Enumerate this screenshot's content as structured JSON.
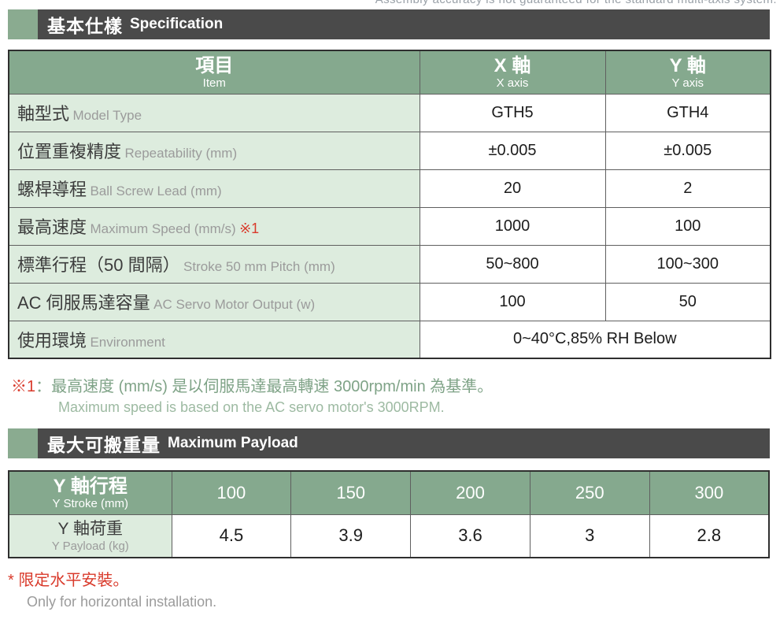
{
  "page": {
    "top_note": "Assembly accuracy is not guaranteed for the standard multi-axis system."
  },
  "colors": {
    "title_bar_gray": "#4a4a4a",
    "accent_green": "#8aab90",
    "table_header_green": "#85a98e",
    "label_cell_green": "#ddecde",
    "warning_red": "#d93a2b",
    "footnote_green": "#7fa387",
    "footnote_green_light": "#9dbaa2",
    "secondary_gray": "#9b9b9b"
  },
  "spec": {
    "title_zh": "基本仕樣",
    "title_en": "Specification",
    "header": {
      "item_zh": "項目",
      "item_en": "Item",
      "x_zh": "X 軸",
      "x_en": "X axis",
      "y_zh": "Y 軸",
      "y_en": "Y axis"
    },
    "rows": [
      {
        "zh": "軸型式",
        "en": "Model Type",
        "x": "GTH5",
        "y": "GTH4"
      },
      {
        "zh": "位置重複精度",
        "en": "Repeatability (mm)",
        "x": "±0.005",
        "y": "±0.005"
      },
      {
        "zh": "螺桿導程",
        "en": "Ball Screw Lead (mm)",
        "x": "20",
        "y": "2"
      },
      {
        "zh": "最高速度",
        "en": "Maximum Speed (mm/s)",
        "note": "※1",
        "x": "1000",
        "y": "100"
      },
      {
        "zh": "標準行程（50 間隔）",
        "en": "Stroke 50 mm Pitch (mm)",
        "x": "50~800",
        "y": "100~300"
      },
      {
        "zh": "AC 伺服馬達容量",
        "en": "AC Servo Motor Output (w)",
        "x": "100",
        "y": "50"
      },
      {
        "zh": "使用環境",
        "en": "Environment",
        "merged": "0~40°C,85% RH Below"
      }
    ],
    "footnote_marker": "※1",
    "footnote_zh": "：最高速度 (mm/s) 是以伺服馬達最高轉速 3000rpm/min 為基準。",
    "footnote_en": "Maximum speed is based on the AC servo motor's 3000RPM."
  },
  "payload": {
    "title_zh": "最大可搬重量",
    "title_en": "Maximum Payload",
    "stroke_label_zh": "Y 軸行程",
    "stroke_label_en": "Y Stroke (mm)",
    "strokes": [
      "100",
      "150",
      "200",
      "250",
      "300"
    ],
    "payload_label_zh": "Y 軸荷重",
    "payload_label_en": "Y Payload (kg)",
    "payloads": [
      "4.5",
      "3.9",
      "3.6",
      "3",
      "2.8"
    ],
    "footnote_marker": "*",
    "footnote_zh": "限定水平安裝。",
    "footnote_en": "Only for horizontal installation."
  }
}
